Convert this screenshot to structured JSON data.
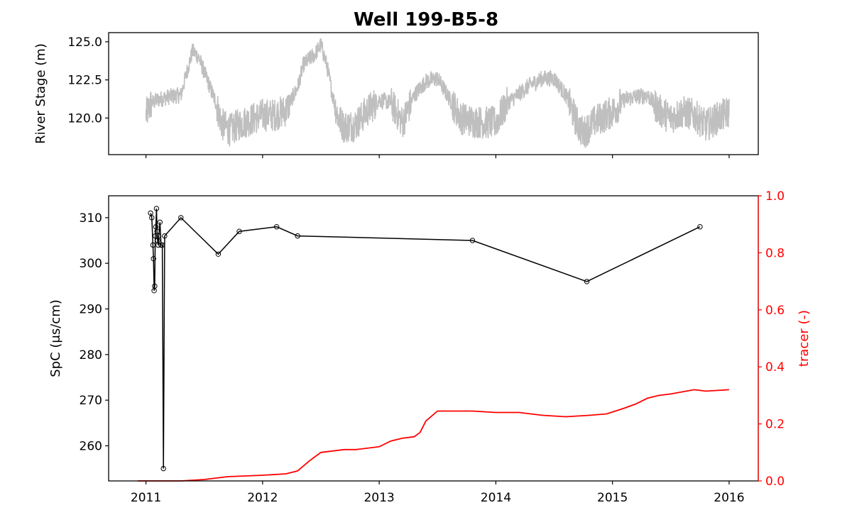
{
  "chart_data": [
    {
      "type": "line",
      "title": "Well 199-B5-8",
      "ylabel": "River Stage (m)",
      "xlim": [
        2010.68,
        2016.25
      ],
      "ylim": [
        117.6,
        125.6
      ],
      "yticks": [
        "120.0",
        "122.5",
        "125.0"
      ],
      "xticks_shared": true,
      "series": [
        {
          "color": "#bfbfbf",
          "note_style": "dense noisy line",
          "x": [
            2011.0,
            2011.05,
            2011.1,
            2011.2,
            2011.3,
            2011.35,
            2011.4,
            2011.45,
            2011.5,
            2011.6,
            2011.65,
            2011.72,
            2011.8,
            2011.9,
            2012.0,
            2012.1,
            2012.2,
            2012.3,
            2012.35,
            2012.45,
            2012.5,
            2012.55,
            2012.6,
            2012.65,
            2012.7,
            2012.8,
            2012.9,
            2013.0,
            2013.1,
            2013.2,
            2013.3,
            2013.4,
            2013.5,
            2013.6,
            2013.7,
            2013.8,
            2013.9,
            2014.0,
            2014.1,
            2014.2,
            2014.3,
            2014.4,
            2014.5,
            2014.6,
            2014.7,
            2014.75,
            2014.85,
            2015.0,
            2015.1,
            2015.2,
            2015.3,
            2015.4,
            2015.5,
            2015.6,
            2015.7,
            2015.8,
            2015.9,
            2016.0
          ],
          "y": [
            120.2,
            121.0,
            121.2,
            121.4,
            121.5,
            123.0,
            124.4,
            124.0,
            123.0,
            121.0,
            119.6,
            119.2,
            119.6,
            119.9,
            120.2,
            120.2,
            120.5,
            122.0,
            123.5,
            124.2,
            124.8,
            123.5,
            121.5,
            120.0,
            119.4,
            119.6,
            120.5,
            121.2,
            121.0,
            119.7,
            121.5,
            122.4,
            122.6,
            121.3,
            120.0,
            119.8,
            119.7,
            119.7,
            121.0,
            121.6,
            122.2,
            122.6,
            122.6,
            121.5,
            119.6,
            119.0,
            119.8,
            120.4,
            121.2,
            121.4,
            121.5,
            120.5,
            120.0,
            120.4,
            120.2,
            119.5,
            120.0,
            120.4
          ]
        }
      ]
    },
    {
      "type": "line",
      "ylabel": "SpC (μs/cm)",
      "y2label": "tracer (-)",
      "xlim": [
        2010.68,
        2016.25
      ],
      "ylim": [
        252.3,
        314.8
      ],
      "y2lim": [
        0.0,
        1.0
      ],
      "xticks": [
        "2011",
        "2012",
        "2013",
        "2014",
        "2015",
        "2016"
      ],
      "yticks": [
        "260",
        "270",
        "280",
        "290",
        "300",
        "310"
      ],
      "y2ticks": [
        "0.0",
        "0.2",
        "0.4",
        "0.6",
        "0.8",
        "1.0"
      ],
      "series": [
        {
          "axis": "left",
          "color": "#000000",
          "marker": "open circle",
          "x": [
            2011.04,
            2011.05,
            2011.06,
            2011.065,
            2011.07,
            2011.075,
            2011.08,
            2011.085,
            2011.09,
            2011.095,
            2011.1,
            2011.105,
            2011.11,
            2011.12,
            2011.13,
            2011.14,
            2011.15,
            2011.16,
            2011.3,
            2011.62,
            2011.8,
            2012.12,
            2012.3,
            2013.8,
            2014.78,
            2015.75
          ],
          "y": [
            311,
            310,
            304,
            301,
            294,
            295,
            306,
            308,
            312,
            307,
            305,
            304,
            306,
            309,
            304,
            304,
            255,
            306,
            310,
            302,
            307,
            308,
            306,
            305,
            296,
            308
          ]
        },
        {
          "axis": "right",
          "color": "#ff0000",
          "x": [
            2010.93,
            2011.3,
            2011.5,
            2011.6,
            2011.7,
            2012.0,
            2012.2,
            2012.3,
            2012.4,
            2012.5,
            2012.6,
            2012.7,
            2012.8,
            2013.0,
            2013.1,
            2013.2,
            2013.3,
            2013.35,
            2013.4,
            2013.5,
            2013.65,
            2013.8,
            2014.0,
            2014.2,
            2014.4,
            2014.6,
            2014.8,
            2014.95,
            2015.1,
            2015.2,
            2015.3,
            2015.4,
            2015.5,
            2015.7,
            2015.8,
            2016.0
          ],
          "y": [
            0.0,
            0.0,
            0.005,
            0.01,
            0.015,
            0.02,
            0.025,
            0.035,
            0.07,
            0.1,
            0.105,
            0.11,
            0.11,
            0.12,
            0.14,
            0.15,
            0.155,
            0.17,
            0.21,
            0.245,
            0.245,
            0.245,
            0.24,
            0.24,
            0.23,
            0.225,
            0.23,
            0.235,
            0.255,
            0.27,
            0.29,
            0.3,
            0.305,
            0.32,
            0.315,
            0.32
          ]
        }
      ]
    }
  ]
}
